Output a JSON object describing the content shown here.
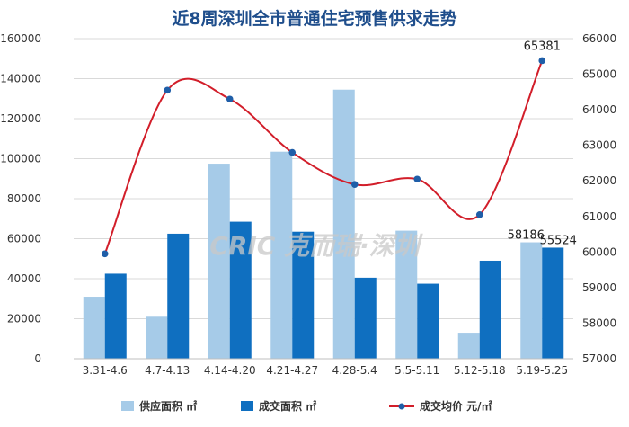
{
  "chart_data": {
    "type": "bar",
    "title": "近8周深圳全市普通住宅预售供求走势",
    "categories": [
      "3.31-4.6",
      "4.7-4.13",
      "4.14-4.20",
      "4.21-4.27",
      "4.28-5.4",
      "5.5-5.11",
      "5.12-5.18",
      "5.19-5.25"
    ],
    "series": [
      {
        "name": "供应面积 ㎡",
        "type": "bar",
        "axis": "left",
        "color": "#a6cbe8",
        "values": [
          31000,
          21000,
          97500,
          103500,
          134500,
          64000,
          13000,
          58186
        ]
      },
      {
        "name": "成交面积 ㎡",
        "type": "bar",
        "axis": "left",
        "color": "#0f6fc0",
        "values": [
          42500,
          62500,
          68500,
          63500,
          40500,
          37500,
          49000,
          55524
        ]
      },
      {
        "name": "成交均价 元/㎡",
        "type": "line",
        "axis": "right",
        "color": "#d21e2a",
        "marker_color": "#1f5ea8",
        "values": [
          59950,
          64550,
          64300,
          62800,
          61900,
          62050,
          61050,
          65381
        ]
      }
    ],
    "y_left": {
      "min": 0,
      "max": 160000,
      "ticks": [
        0,
        20000,
        40000,
        60000,
        80000,
        100000,
        120000,
        140000,
        160000
      ]
    },
    "y_right": {
      "min": 57000,
      "max": 66000,
      "ticks": [
        57000,
        58000,
        59000,
        60000,
        61000,
        62000,
        63000,
        64000,
        65000,
        66000
      ]
    },
    "data_labels": [
      {
        "series": 0,
        "index": 7,
        "text": "58186"
      },
      {
        "series": 1,
        "index": 7,
        "text": "55524"
      },
      {
        "series": 2,
        "index": 7,
        "text": "65381"
      }
    ],
    "grid": true,
    "legend_position": "bottom"
  },
  "watermark": "CRIC 克而瑞·深圳"
}
